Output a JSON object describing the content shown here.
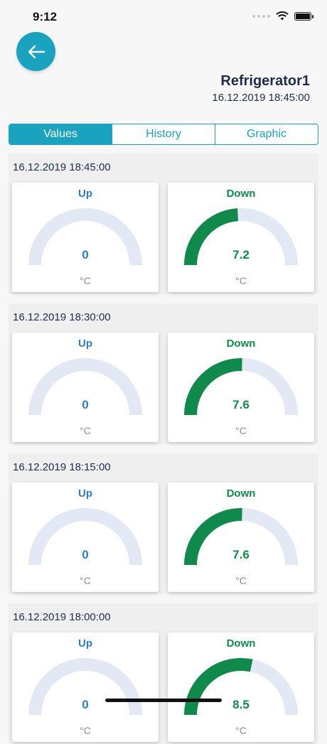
{
  "status_bar": {
    "time": "9:12"
  },
  "header": {
    "device_name": "Refrigerator1",
    "timestamp": "16.12.2019 18:45:00"
  },
  "tabs": [
    {
      "label": "Values",
      "active": true
    },
    {
      "label": "History",
      "active": false
    },
    {
      "label": "Graphic",
      "active": false
    }
  ],
  "gauge_max": 15,
  "colors": {
    "accent": "#1aa3bf",
    "up": "#2f7fbf",
    "down": "#0f8a4a",
    "track": "#e2e8f4"
  },
  "readings": [
    {
      "timestamp": "16.12.2019 18:45:00",
      "up": {
        "title": "Up",
        "value": "0",
        "unit": "°C"
      },
      "down": {
        "title": "Down",
        "value": "7.2",
        "unit": "°C"
      }
    },
    {
      "timestamp": "16.12.2019 18:30:00",
      "up": {
        "title": "Up",
        "value": "0",
        "unit": "°C"
      },
      "down": {
        "title": "Down",
        "value": "7.6",
        "unit": "°C"
      }
    },
    {
      "timestamp": "16.12.2019 18:15:00",
      "up": {
        "title": "Up",
        "value": "0",
        "unit": "°C"
      },
      "down": {
        "title": "Down",
        "value": "7.6",
        "unit": "°C"
      }
    },
    {
      "timestamp": "16.12.2019 18:00:00",
      "up": {
        "title": "Up",
        "value": "0",
        "unit": "°C"
      },
      "down": {
        "title": "Down",
        "value": "8.5",
        "unit": "°C"
      }
    }
  ]
}
